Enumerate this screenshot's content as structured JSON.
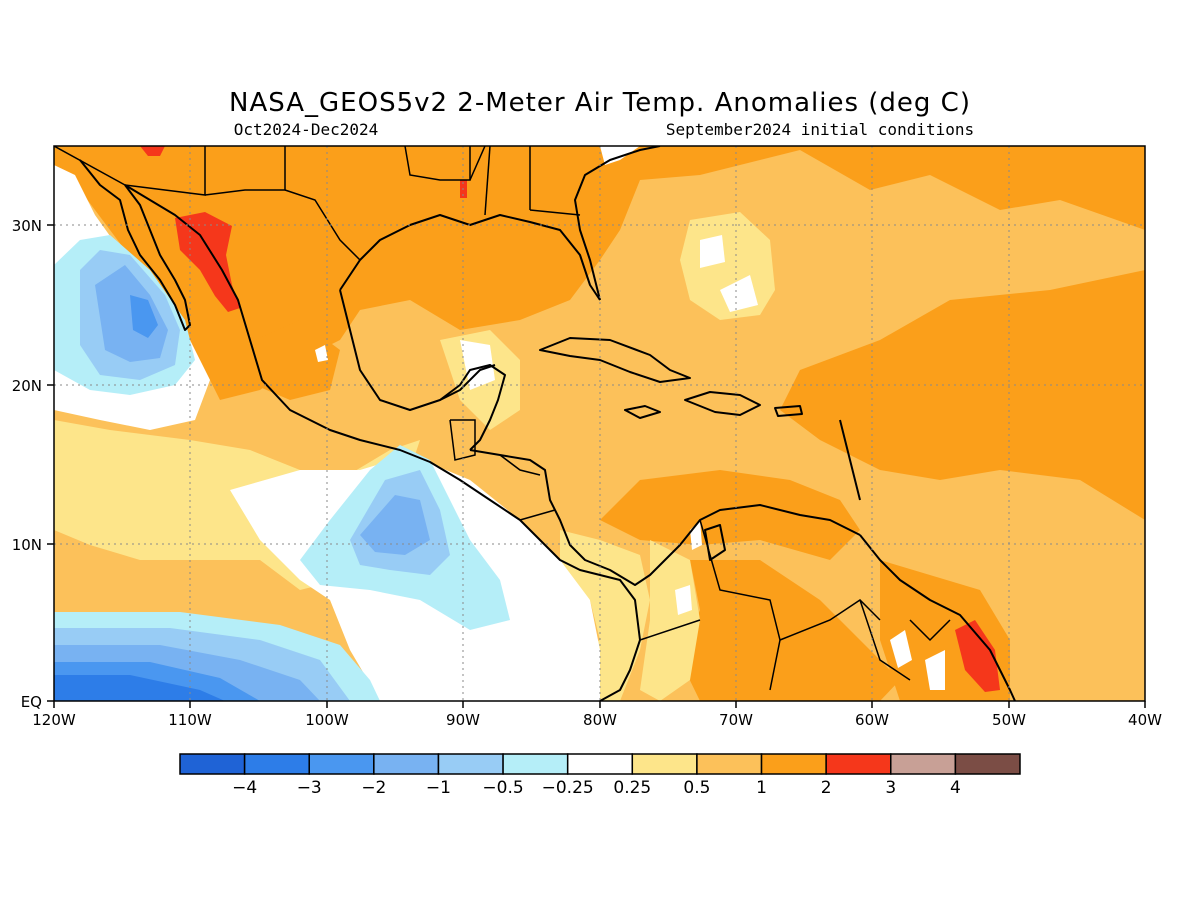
{
  "title": "NASA_GEOS5v2 2-Meter Air Temp. Anomalies (deg C)",
  "period": "Oct2024-Dec2024",
  "init": "September2024 initial conditions",
  "lat_ticks": [
    "30N",
    "20N",
    "10N",
    "EQ"
  ],
  "lon_ticks": [
    "120W",
    "110W",
    "100W",
    "90W",
    "80W",
    "70W",
    "60W",
    "50W",
    "40W"
  ],
  "colorbar": {
    "labels": [
      "-4",
      "-3",
      "-2",
      "-1",
      "-0.5",
      "-0.25",
      "0.25",
      "0.5",
      "1",
      "2",
      "3",
      "4"
    ],
    "colors": [
      "#1f63d6",
      "#2d7de8",
      "#4a97f0",
      "#78b2f2",
      "#98ccf5",
      "#b5eef8",
      "#ffffff",
      "#fde58a",
      "#fcc15a",
      "#fb9f1a",
      "#f5371b",
      "#c8a096",
      "#7b4d45"
    ]
  },
  "colors": {
    "warm_1": "#fcc15a",
    "warm_2": "#fb9f1a",
    "warm_3": "#f5371b",
    "pale_yellow": "#fde58a",
    "cool_1": "#b5eef8",
    "cool_2": "#98ccf5",
    "cool_3": "#78b2f2",
    "cool_4": "#4a97f0",
    "cool_5": "#2d7de8",
    "cool_6": "#1f63d6"
  }
}
